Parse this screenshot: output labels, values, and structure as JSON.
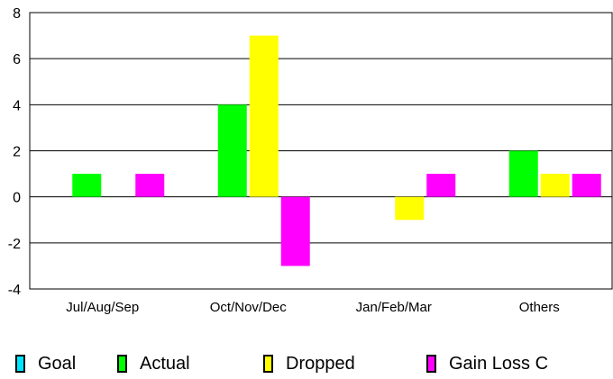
{
  "chart_data": {
    "type": "bar",
    "categories": [
      "Jul/Aug/Sep",
      "Oct/Nov/Dec",
      "Jan/Feb/Mar",
      "Others"
    ],
    "series": [
      {
        "name": "Goal",
        "color": "#00e5ff",
        "values": [
          0,
          0,
          0,
          0
        ]
      },
      {
        "name": "Actual",
        "color": "#00ff00",
        "values": [
          1,
          4,
          0,
          2
        ]
      },
      {
        "name": "Dropped",
        "color": "#ffff00",
        "values": [
          0,
          7,
          -1,
          1
        ]
      },
      {
        "name": "Gain Loss C",
        "color": "#ff00ff",
        "values": [
          1,
          -3,
          1,
          1
        ]
      }
    ],
    "yticks": [
      "8",
      "6",
      "4",
      "2",
      "0",
      "-2",
      "-4"
    ],
    "ylim": [
      -4,
      8
    ],
    "grid": true,
    "legend_position": "bottom"
  }
}
